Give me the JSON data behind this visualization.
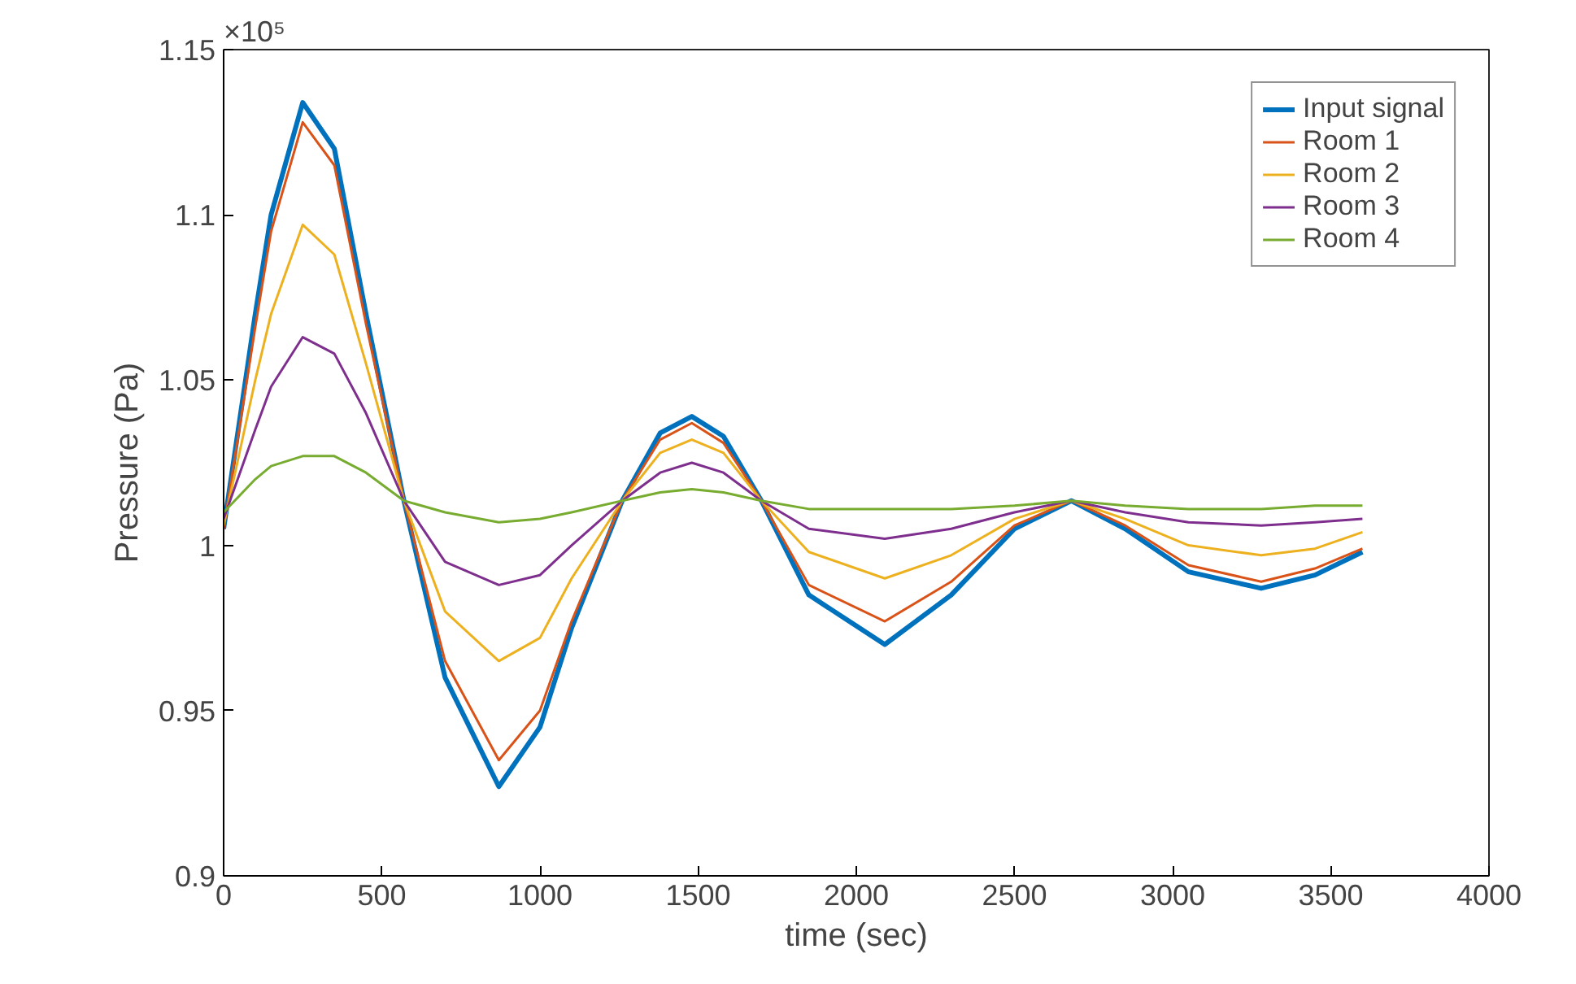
{
  "chart_data": {
    "type": "line",
    "xlabel": "time (sec)",
    "ylabel": "Pressure (Pa)",
    "annotations": [
      "×10⁵"
    ],
    "x": [
      0,
      100,
      150,
      250,
      350,
      450,
      570,
      700,
      870,
      1000,
      1100,
      1260,
      1380,
      1480,
      1580,
      1700,
      1850,
      2090,
      2300,
      2500,
      2680,
      2850,
      3050,
      3280,
      3450,
      3600
    ],
    "series": [
      {
        "name": "Input signal",
        "color": "#0072bd",
        "values": [
          1.005,
          1.07,
          1.1,
          1.134,
          1.12,
          1.07,
          1.0135,
          0.96,
          0.927,
          0.945,
          0.975,
          1.0135,
          1.034,
          1.039,
          1.033,
          1.0135,
          0.985,
          0.97,
          0.985,
          1.005,
          1.0135,
          1.005,
          0.992,
          0.987,
          0.991,
          0.998
        ]
      },
      {
        "name": "Room 1",
        "color": "#d95319",
        "values": [
          1.005,
          1.066,
          1.095,
          1.128,
          1.115,
          1.067,
          1.0135,
          0.965,
          0.935,
          0.95,
          0.977,
          1.0135,
          1.032,
          1.037,
          1.031,
          1.0135,
          0.988,
          0.977,
          0.989,
          1.006,
          1.0135,
          1.006,
          0.994,
          0.989,
          0.993,
          0.999
        ]
      },
      {
        "name": "Room 2",
        "color": "#edb120",
        "values": [
          1.006,
          1.05,
          1.07,
          1.097,
          1.088,
          1.055,
          1.0135,
          0.98,
          0.965,
          0.972,
          0.99,
          1.0135,
          1.028,
          1.032,
          1.028,
          1.0135,
          0.998,
          0.99,
          0.997,
          1.008,
          1.0135,
          1.008,
          1.0,
          0.997,
          0.999,
          1.004
        ]
      },
      {
        "name": "Room 3",
        "color": "#7e2f8e",
        "values": [
          1.008,
          1.035,
          1.048,
          1.063,
          1.058,
          1.04,
          1.0135,
          0.995,
          0.988,
          0.991,
          1.0,
          1.0135,
          1.022,
          1.025,
          1.022,
          1.0135,
          1.005,
          1.002,
          1.005,
          1.01,
          1.0135,
          1.01,
          1.007,
          1.006,
          1.007,
          1.008
        ]
      },
      {
        "name": "Room 4",
        "color": "#77ac30",
        "values": [
          1.01,
          1.02,
          1.024,
          1.027,
          1.027,
          1.022,
          1.0135,
          1.01,
          1.007,
          1.008,
          1.01,
          1.0135,
          1.016,
          1.017,
          1.016,
          1.0135,
          1.011,
          1.011,
          1.011,
          1.012,
          1.0135,
          1.012,
          1.011,
          1.011,
          1.012,
          1.012
        ]
      }
    ],
    "xlim": [
      0,
      4000
    ],
    "xticks": [
      0,
      500,
      1000,
      1500,
      2000,
      2500,
      3000,
      3500,
      4000
    ],
    "ylim": [
      0.9,
      1.15
    ],
    "yticks": [
      0.9,
      0.95,
      1,
      1.05,
      1.1,
      1.15
    ],
    "grid": false,
    "legend": "top right",
    "marker": "none",
    "line_style": "solid"
  }
}
